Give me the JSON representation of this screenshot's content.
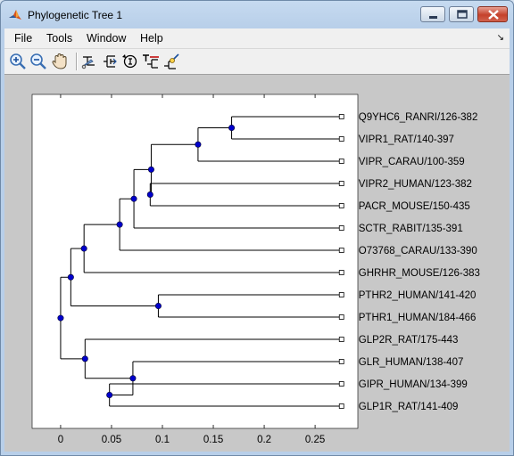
{
  "window": {
    "title": "Phylogenetic Tree 1"
  },
  "menu": {
    "items": [
      "File",
      "Tools",
      "Window",
      "Help"
    ],
    "overflow_arrow": "↘"
  },
  "toolbar": {
    "buttons": [
      "zoom-in-icon",
      "zoom-out-icon",
      "pan-icon",
      "prune-icon",
      "reorder-icon",
      "rotate-icon",
      "rename-icon",
      "find-leaf-icon"
    ]
  },
  "colors": {
    "node_fill": "#0000cc",
    "figure_bg": "#c8c8c8",
    "axes_bg": "#ffffff"
  },
  "chart_data": {
    "type": "phylogenetic-tree",
    "x_ticks": [
      "0",
      "0.05",
      "0.1",
      "0.15",
      "0.2",
      "0.25"
    ],
    "x_tick_values": [
      0,
      0.05,
      0.1,
      0.15,
      0.2,
      0.25
    ],
    "xlim": [
      -0.028,
      0.292
    ],
    "leaves": [
      "Q9YHC6_RANRI/126-382",
      "VIPR1_RAT/140-397",
      "VIPR_CARAU/100-359",
      "VIPR2_HUMAN/123-382",
      "PACR_MOUSE/150-435",
      "SCTR_RABIT/135-391",
      "O73768_CARAU/133-390",
      "GHRHR_MOUSE/126-383",
      "PTHR2_HUMAN/141-420",
      "PTHR1_HUMAN/184-466",
      "GLP2R_RAT/175-443",
      "GLR_HUMAN/138-407",
      "GIPR_HUMAN/134-399",
      "GLP1R_RAT/141-409"
    ],
    "leaf_x": 0.276,
    "nodes": [
      {
        "x": 0.168,
        "children": [
          "L0",
          "L1"
        ]
      },
      {
        "x": 0.135,
        "children": [
          "N0",
          "L2"
        ]
      },
      {
        "x": 0.088,
        "children": [
          "L3",
          "L4"
        ]
      },
      {
        "x": 0.089,
        "children": [
          "N1",
          "N2"
        ]
      },
      {
        "x": 0.072,
        "children": [
          "N3",
          "L5"
        ]
      },
      {
        "x": 0.058,
        "children": [
          "N4",
          "L6"
        ]
      },
      {
        "x": 0.023,
        "children": [
          "N5",
          "L7"
        ]
      },
      {
        "x": 0.096,
        "children": [
          "L8",
          "L9"
        ]
      },
      {
        "x": 0.01,
        "children": [
          "N6",
          "N7"
        ]
      },
      {
        "x": 0.048,
        "children": [
          "L12",
          "L13"
        ]
      },
      {
        "x": 0.071,
        "children": [
          "L11",
          "N9"
        ]
      },
      {
        "x": 0.024,
        "children": [
          "L10",
          "N10"
        ]
      },
      {
        "x": 0.0,
        "children": [
          "N8",
          "N11"
        ]
      }
    ]
  }
}
